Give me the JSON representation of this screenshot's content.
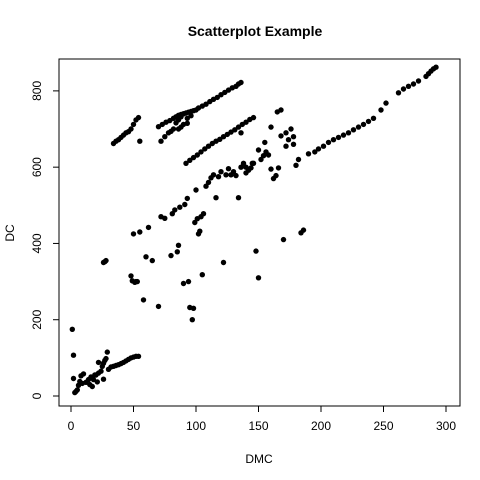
{
  "chart_data": {
    "type": "scatter",
    "title": "Scatterplot Example",
    "xlabel": "DMC",
    "ylabel": "DC",
    "xlim": [
      0,
      300
    ],
    "ylim": [
      0,
      860
    ],
    "xticks": [
      0,
      50,
      100,
      150,
      200,
      250,
      300
    ],
    "yticks": [
      0,
      200,
      400,
      600,
      800
    ],
    "grid": false,
    "legend": "none",
    "point_color": "#000000",
    "points": [
      [
        1,
        175
      ],
      [
        2,
        107
      ],
      [
        2,
        46
      ],
      [
        3,
        9
      ],
      [
        4,
        12
      ],
      [
        5,
        16
      ],
      [
        6,
        28
      ],
      [
        7,
        38
      ],
      [
        8,
        53
      ],
      [
        9,
        33
      ],
      [
        10,
        58
      ],
      [
        12,
        36
      ],
      [
        14,
        43
      ],
      [
        15,
        30
      ],
      [
        16,
        50
      ],
      [
        17,
        25
      ],
      [
        18,
        43
      ],
      [
        19,
        55
      ],
      [
        20,
        55
      ],
      [
        21,
        37
      ],
      [
        22,
        60
      ],
      [
        22,
        88
      ],
      [
        24,
        65
      ],
      [
        25,
        78
      ],
      [
        26,
        86
      ],
      [
        27,
        93
      ],
      [
        28,
        98
      ],
      [
        29,
        115
      ],
      [
        30,
        70
      ],
      [
        32,
        76
      ],
      [
        34,
        78
      ],
      [
        36,
        80
      ],
      [
        38,
        82
      ],
      [
        40,
        85
      ],
      [
        42,
        88
      ],
      [
        44,
        92
      ],
      [
        46,
        96
      ],
      [
        48,
        100
      ],
      [
        50,
        102
      ],
      [
        52,
        104
      ],
      [
        54,
        104
      ],
      [
        26,
        44
      ],
      [
        26,
        350
      ],
      [
        27,
        352
      ],
      [
        28,
        355
      ],
      [
        34,
        662
      ],
      [
        36,
        668
      ],
      [
        38,
        672
      ],
      [
        40,
        678
      ],
      [
        42,
        684
      ],
      [
        44,
        690
      ],
      [
        46,
        693
      ],
      [
        48,
        700
      ],
      [
        50,
        712
      ],
      [
        52,
        724
      ],
      [
        54,
        730
      ],
      [
        70,
        706
      ],
      [
        73,
        712
      ],
      [
        76,
        718
      ],
      [
        79,
        722
      ],
      [
        82,
        728
      ],
      [
        84,
        732
      ],
      [
        86,
        736
      ],
      [
        88,
        738
      ],
      [
        90,
        740
      ],
      [
        92,
        742
      ],
      [
        94,
        744
      ],
      [
        96,
        746
      ],
      [
        98,
        748
      ],
      [
        100,
        750
      ],
      [
        102,
        755
      ],
      [
        105,
        760
      ],
      [
        108,
        765
      ],
      [
        111,
        772
      ],
      [
        114,
        778
      ],
      [
        117,
        783
      ],
      [
        120,
        790
      ],
      [
        123,
        796
      ],
      [
        126,
        802
      ],
      [
        129,
        808
      ],
      [
        132,
        812
      ],
      [
        134,
        818
      ],
      [
        136,
        822
      ],
      [
        72,
        668
      ],
      [
        75,
        680
      ],
      [
        78,
        690
      ],
      [
        80,
        694
      ],
      [
        82,
        700
      ],
      [
        84,
        716
      ],
      [
        86,
        724
      ],
      [
        88,
        732
      ],
      [
        90,
        740
      ],
      [
        93,
        728
      ],
      [
        96,
        735
      ],
      [
        93,
        715
      ],
      [
        90,
        712
      ],
      [
        88,
        705
      ],
      [
        86,
        700
      ],
      [
        55,
        668
      ],
      [
        48,
        315
      ],
      [
        49,
        302
      ],
      [
        50,
        425
      ],
      [
        51,
        298
      ],
      [
        52,
        300
      ],
      [
        53,
        300
      ],
      [
        55,
        430
      ],
      [
        58,
        252
      ],
      [
        60,
        365
      ],
      [
        62,
        442
      ],
      [
        65,
        355
      ],
      [
        70,
        235
      ],
      [
        72,
        470
      ],
      [
        75,
        466
      ],
      [
        80,
        368
      ],
      [
        81,
        478
      ],
      [
        83,
        488
      ],
      [
        85,
        378
      ],
      [
        86,
        395
      ],
      [
        87,
        495
      ],
      [
        90,
        295
      ],
      [
        91,
        502
      ],
      [
        93,
        518
      ],
      [
        94,
        300
      ],
      [
        95,
        232
      ],
      [
        97,
        200
      ],
      [
        98,
        230
      ],
      [
        99,
        455
      ],
      [
        100,
        540
      ],
      [
        101,
        465
      ],
      [
        102,
        425
      ],
      [
        103,
        432
      ],
      [
        104,
        470
      ],
      [
        105,
        318
      ],
      [
        106,
        478
      ],
      [
        108,
        550
      ],
      [
        110,
        560
      ],
      [
        112,
        572
      ],
      [
        114,
        580
      ],
      [
        116,
        520
      ],
      [
        118,
        575
      ],
      [
        120,
        588
      ],
      [
        122,
        350
      ],
      [
        124,
        580
      ],
      [
        126,
        596
      ],
      [
        128,
        580
      ],
      [
        130,
        588
      ],
      [
        132,
        578
      ],
      [
        134,
        520
      ],
      [
        136,
        600
      ],
      [
        138,
        610
      ],
      [
        140,
        585
      ],
      [
        142,
        592
      ],
      [
        144,
        598
      ],
      [
        146,
        610
      ],
      [
        148,
        380
      ],
      [
        150,
        310
      ],
      [
        152,
        620
      ],
      [
        154,
        630
      ],
      [
        156,
        640
      ],
      [
        158,
        632
      ],
      [
        160,
        595
      ],
      [
        162,
        570
      ],
      [
        164,
        578
      ],
      [
        166,
        598
      ],
      [
        168,
        682
      ],
      [
        170,
        410
      ],
      [
        172,
        690
      ],
      [
        174,
        672
      ],
      [
        176,
        700
      ],
      [
        178,
        660
      ],
      [
        180,
        605
      ],
      [
        182,
        620
      ],
      [
        184,
        428
      ],
      [
        186,
        435
      ],
      [
        92,
        610
      ],
      [
        95,
        618
      ],
      [
        98,
        625
      ],
      [
        101,
        632
      ],
      [
        104,
        640
      ],
      [
        107,
        648
      ],
      [
        110,
        655
      ],
      [
        113,
        662
      ],
      [
        116,
        668
      ],
      [
        119,
        673
      ],
      [
        122,
        680
      ],
      [
        125,
        686
      ],
      [
        128,
        692
      ],
      [
        131,
        698
      ],
      [
        134,
        705
      ],
      [
        137,
        712
      ],
      [
        140,
        718
      ],
      [
        143,
        725
      ],
      [
        146,
        730
      ],
      [
        136,
        690
      ],
      [
        140,
        600
      ],
      [
        145,
        610
      ],
      [
        150,
        645
      ],
      [
        155,
        665
      ],
      [
        160,
        705
      ],
      [
        165,
        745
      ],
      [
        168,
        750
      ],
      [
        172,
        655
      ],
      [
        178,
        680
      ],
      [
        190,
        635
      ],
      [
        195,
        640
      ],
      [
        198,
        648
      ],
      [
        202,
        655
      ],
      [
        206,
        665
      ],
      [
        210,
        672
      ],
      [
        214,
        678
      ],
      [
        218,
        684
      ],
      [
        222,
        690
      ],
      [
        226,
        698
      ],
      [
        230,
        705
      ],
      [
        234,
        712
      ],
      [
        238,
        720
      ],
      [
        242,
        728
      ],
      [
        248,
        750
      ],
      [
        252,
        768
      ],
      [
        262,
        795
      ],
      [
        266,
        805
      ],
      [
        270,
        812
      ],
      [
        274,
        818
      ],
      [
        278,
        826
      ],
      [
        284,
        838
      ],
      [
        286,
        845
      ],
      [
        288,
        852
      ],
      [
        290,
        858
      ],
      [
        292,
        862
      ]
    ]
  }
}
